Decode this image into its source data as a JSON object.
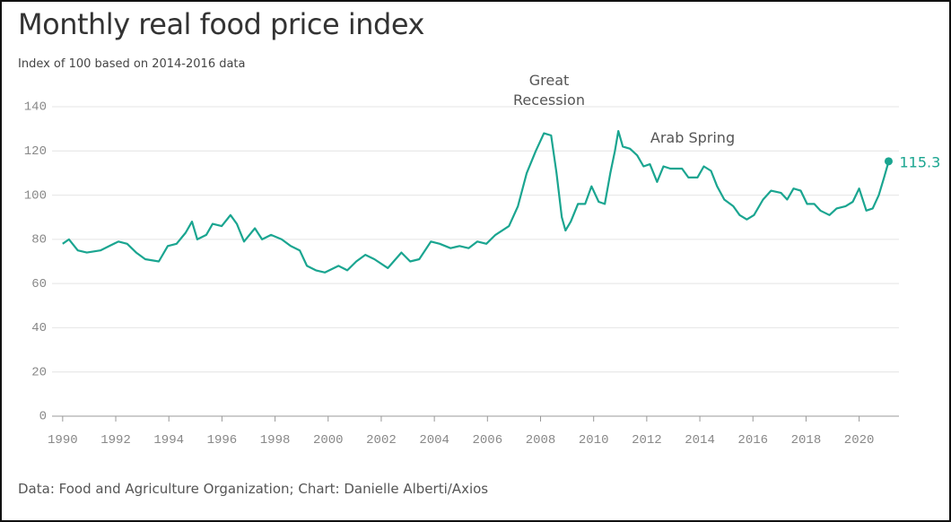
{
  "chart_data": {
    "type": "line",
    "title": "Monthly real food price index",
    "subtitle": "Index of 100 based on 2014-2016 data",
    "source": "Data: Food and Agriculture Organization; Chart: Danielle Alberti/Axios",
    "annotations": [
      {
        "text": "Great Recession"
      },
      {
        "text": "Arab Spring"
      }
    ],
    "x": [
      1990.0,
      1990.24,
      1990.57,
      1990.91,
      1991.42,
      1991.76,
      1992.1,
      1992.43,
      1992.77,
      1993.11,
      1993.62,
      1993.96,
      1994.29,
      1994.63,
      1994.87,
      1995.07,
      1995.41,
      1995.65,
      1995.99,
      1996.32,
      1996.56,
      1996.83,
      1997.24,
      1997.51,
      1997.85,
      1998.25,
      1998.59,
      1998.93,
      1999.2,
      1999.54,
      1999.88,
      2000.39,
      2000.72,
      2001.06,
      2001.4,
      2001.74,
      2002.25,
      2002.76,
      2003.09,
      2003.43,
      2003.87,
      2004.2,
      2004.61,
      2004.95,
      2005.29,
      2005.62,
      2005.96,
      2006.3,
      2006.81,
      2007.15,
      2007.48,
      2007.82,
      2008.13,
      2008.4,
      2008.6,
      2008.8,
      2008.94,
      2009.14,
      2009.41,
      2009.68,
      2009.92,
      2010.19,
      2010.42,
      2010.63,
      2010.8,
      2010.93,
      2011.1,
      2011.37,
      2011.64,
      2011.88,
      2012.12,
      2012.39,
      2012.63,
      2012.89,
      2013.33,
      2013.57,
      2013.91,
      2014.15,
      2014.42,
      2014.65,
      2014.92,
      2015.26,
      2015.5,
      2015.77,
      2016.04,
      2016.38,
      2016.68,
      2017.06,
      2017.29,
      2017.53,
      2017.8,
      2018.04,
      2018.31,
      2018.54,
      2018.88,
      2019.15,
      2019.49,
      2019.76,
      2020.0,
      2020.27,
      2020.51,
      2020.74,
      2020.94,
      2021.11
    ],
    "series": [
      {
        "name": "Real food price index",
        "color": "#1aa590",
        "values": [
          78,
          80,
          75,
          74,
          75,
          77,
          79,
          78,
          74,
          71,
          70,
          77,
          78,
          83,
          88,
          80,
          82,
          87,
          86,
          91,
          87,
          79,
          85,
          80,
          82,
          80,
          77,
          75,
          68,
          66,
          65,
          68,
          66,
          70,
          73,
          71,
          67,
          74,
          70,
          71,
          79,
          78,
          76,
          77,
          76,
          79,
          78,
          82,
          86,
          95,
          110,
          120,
          128,
          127,
          110,
          90,
          84,
          88,
          96,
          96,
          104,
          97,
          96,
          110,
          120,
          129,
          122,
          121,
          118,
          113,
          114,
          106,
          113,
          112,
          112,
          108,
          108,
          113,
          111,
          104,
          98,
          95,
          91,
          89,
          91,
          98,
          102,
          101,
          98,
          103,
          102,
          96,
          96,
          93,
          91,
          94,
          95,
          97,
          103,
          93,
          94,
          100,
          108,
          115.3
        ]
      }
    ],
    "xlim": [
      1989.6,
      2021.5
    ],
    "xticks": [
      1990,
      1992,
      1994,
      1996,
      1998,
      2000,
      2002,
      2004,
      2006,
      2008,
      2010,
      2012,
      2014,
      2016,
      2018,
      2020
    ],
    "ylim": [
      0,
      140
    ],
    "yticks": [
      0,
      20,
      40,
      60,
      80,
      100,
      120,
      140
    ],
    "grid": true
  }
}
